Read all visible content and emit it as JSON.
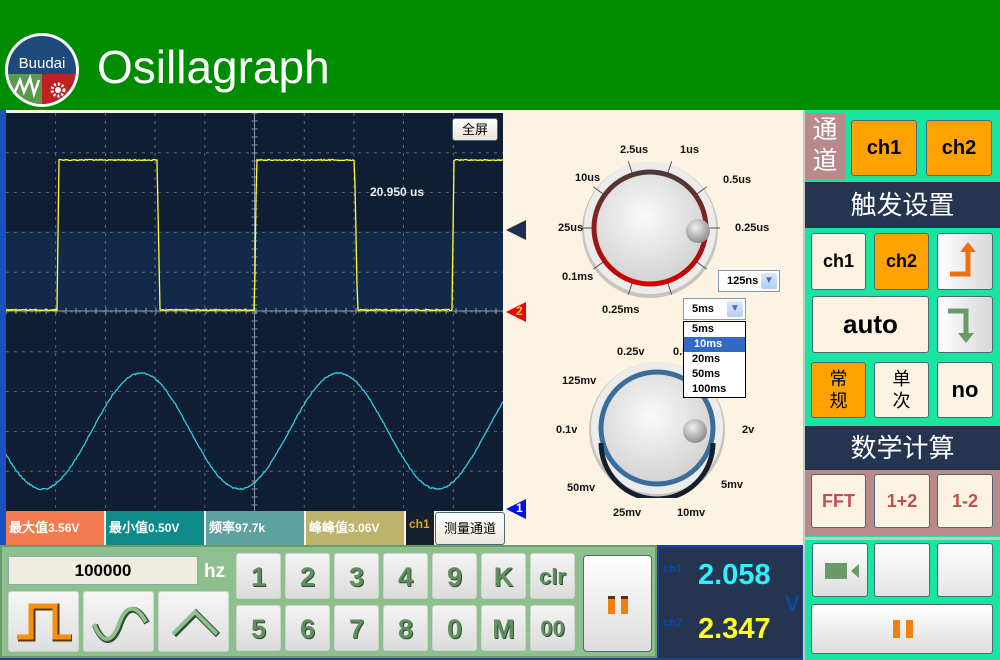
{
  "app": {
    "title": "Osillagraph",
    "logo_text": "Buudai"
  },
  "screen": {
    "fullscreen_label": "全屏",
    "measurement_readout": "20.950 us",
    "markers": {
      "ch2": "2",
      "ch1": "1"
    },
    "colors": {
      "ch2_trace": "#ffff33",
      "ch1_trace": "#33ccdd",
      "background": "#0f1e33"
    }
  },
  "timebase_knob": {
    "labels": [
      "2.5us",
      "1us",
      "10us",
      "0.5us",
      "25us",
      "0.25us",
      "0.1ms",
      "0.25ms"
    ],
    "select_value": "125ns"
  },
  "time_select": {
    "value": "5ms",
    "options": [
      "5ms",
      "10ms",
      "20ms",
      "50ms",
      "100ms"
    ],
    "highlighted": "10ms"
  },
  "volts_knob": {
    "labels": [
      "0.25v",
      "0.5v",
      "125mv",
      "0.1v",
      "2v",
      "50mv",
      "5mv",
      "25mv",
      "10mv"
    ]
  },
  "measurements": [
    {
      "label": "最大值",
      "value": "3.56V",
      "color": "#f47a50"
    },
    {
      "label": "最小值",
      "value": "0.50V",
      "color": "#0f8a8a"
    },
    {
      "label": "频率",
      "value": "97.7k",
      "color": "#5fa0a0"
    },
    {
      "label": "峰峰值",
      "value": "3.06V",
      "color": "#bdb36a"
    }
  ],
  "measure_channel": {
    "current": "ch1",
    "button": "测量通道"
  },
  "generator": {
    "frequency": "100000",
    "unit": "hz",
    "keys_row1": [
      "1",
      "2",
      "3",
      "4",
      "9",
      "K",
      "clr"
    ],
    "keys_row2": [
      "5",
      "6",
      "7",
      "8",
      "0",
      "M",
      "00"
    ],
    "waveforms": [
      "square-wave",
      "sine-wave",
      "triangle-wave"
    ]
  },
  "readout": {
    "ch1_label": "ch1",
    "ch1_value": "2.058",
    "ch2_label": "ch2",
    "ch2_value": "2.347",
    "unit": "V"
  },
  "right_panel": {
    "channel_label": "通道",
    "channels": [
      "ch1",
      "ch2"
    ],
    "trigger_header": "触发设置",
    "trigger_sources": [
      "ch1",
      "ch2"
    ],
    "trigger_source_selected": "ch2",
    "trigger_mode": "auto",
    "sweep_modes": [
      "常规",
      "单次",
      "no"
    ],
    "sweep_selected": "常规",
    "math_header": "数学计算",
    "math_buttons": [
      "FFT",
      "1+2",
      "1-2"
    ]
  }
}
